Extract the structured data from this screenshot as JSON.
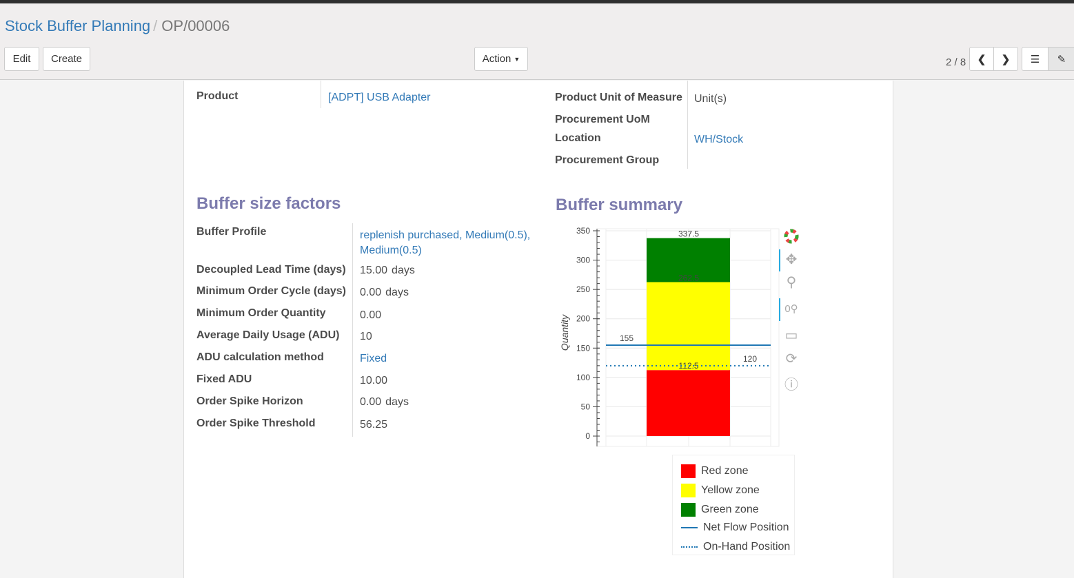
{
  "breadcrumb": {
    "parent": "Stock Buffer Planning",
    "current": "OP/00006"
  },
  "buttons": {
    "edit": "Edit",
    "create": "Create",
    "action": "Action"
  },
  "pager": {
    "text": "2 / 8"
  },
  "fields": {
    "product_label": "Product",
    "product": "[ADPT] USB Adapter",
    "uom_label": "Product Unit of Measure",
    "uom": "Unit(s)",
    "proc_uom_label": "Procurement UoM",
    "location_label": "Location",
    "location": "WH/Stock",
    "proc_group_label": "Procurement Group"
  },
  "factors": {
    "title": "Buffer size factors",
    "rows": [
      {
        "label": "Buffer Profile",
        "value": "replenish purchased, Medium(0.5),",
        "value2": "Medium(0.5)",
        "link": true
      },
      {
        "label": "Decoupled Lead Time (days)",
        "value": "15.00",
        "unit": "days"
      },
      {
        "label": "Minimum Order Cycle (days)",
        "value": "0.00",
        "unit": "days"
      },
      {
        "label": "Minimum Order Quantity",
        "value": "0.00"
      },
      {
        "label": "Average Daily Usage (ADU)",
        "value": "10"
      },
      {
        "label": "ADU calculation method",
        "value": "Fixed",
        "link": true
      },
      {
        "label": "Fixed ADU",
        "value": "10.00"
      },
      {
        "label": "Order Spike Horizon",
        "value": "0.00",
        "unit": "days"
      },
      {
        "label": "Order Spike Threshold",
        "value": "56.25"
      }
    ]
  },
  "summary": {
    "title": "Buffer summary"
  },
  "chart_data": {
    "type": "bar",
    "ylabel": "Quantity",
    "ylim": [
      0,
      350
    ],
    "yticks": [
      "0",
      "50",
      "100",
      "150",
      "200",
      "250",
      "300",
      "350"
    ],
    "grid": true,
    "stack": [
      {
        "name": "Red zone",
        "from": 0,
        "to": 112.5,
        "color": "#ff0000"
      },
      {
        "name": "Yellow zone",
        "from": 112.5,
        "to": 262.5,
        "color": "#ffff00"
      },
      {
        "name": "Green zone",
        "from": 262.5,
        "to": 337.5,
        "color": "#008000"
      }
    ],
    "bar_labels": [
      "112.5",
      "262.5",
      "337.5"
    ],
    "lines": [
      {
        "name": "Net Flow Position",
        "value": 155,
        "label": "155",
        "style": "solid",
        "color": "#1f77b4"
      },
      {
        "name": "On-Hand Position",
        "value": 120,
        "label": "120",
        "style": "dotted",
        "color": "#1f77b4"
      }
    ],
    "legend": [
      "Red zone",
      "Yellow zone",
      "Green zone",
      "Net Flow Position",
      "On-Hand Position"
    ],
    "legend_placement": "bottom"
  },
  "toolbar_icons": [
    "bokeh-logo-icon",
    "pan-icon",
    "box-zoom-icon",
    "wheel-zoom-icon",
    "save-icon",
    "reset-icon",
    "help-icon"
  ]
}
